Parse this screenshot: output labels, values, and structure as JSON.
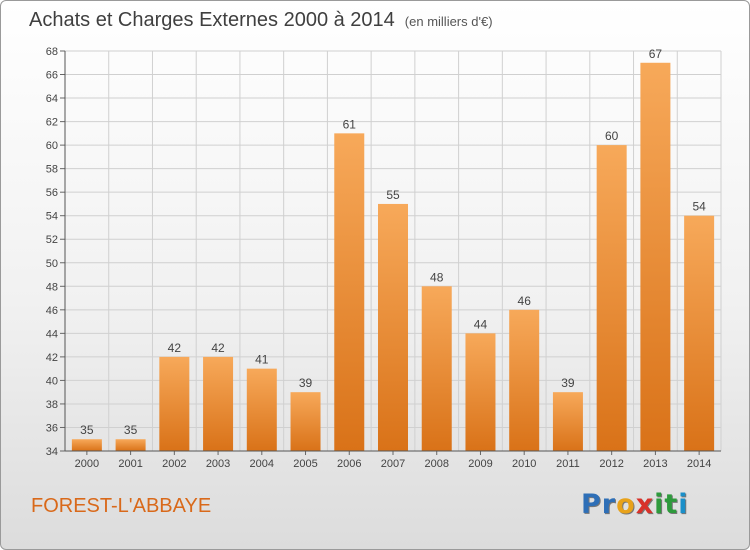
{
  "title": "Achats et Charges Externes 2000 à 2014",
  "subtitle": "(en milliers d'€)",
  "place_name": "FOREST-L'ABBAYE",
  "logo": {
    "letters": [
      "P",
      "r",
      "o",
      "x",
      "i",
      "t",
      "i"
    ],
    "colors": [
      "#2e6fb7",
      "#2e6fb7",
      "#e8a21a",
      "#d8322a",
      "#2e9a3c",
      "#2e9a3c",
      "#1a8fc9"
    ]
  },
  "colors": {
    "bar_light": "#f7a95a",
    "bar_dark": "#d97218",
    "grid": "#d0d0d0",
    "text": "#444444"
  },
  "chart_data": {
    "type": "bar",
    "title": "Achats et Charges Externes 2000 à 2014",
    "subtitle": "(en milliers d'€)",
    "categories": [
      "2000",
      "2001",
      "2002",
      "2003",
      "2004",
      "2005",
      "2006",
      "2007",
      "2008",
      "2009",
      "2010",
      "2011",
      "2012",
      "2013",
      "2014"
    ],
    "values": [
      35,
      35,
      42,
      42,
      41,
      39,
      61,
      55,
      48,
      44,
      46,
      39,
      60,
      67,
      54
    ],
    "ylim": [
      34,
      68
    ],
    "ytick_step": 2,
    "grid": true,
    "legend": "none",
    "data_labels": true
  }
}
